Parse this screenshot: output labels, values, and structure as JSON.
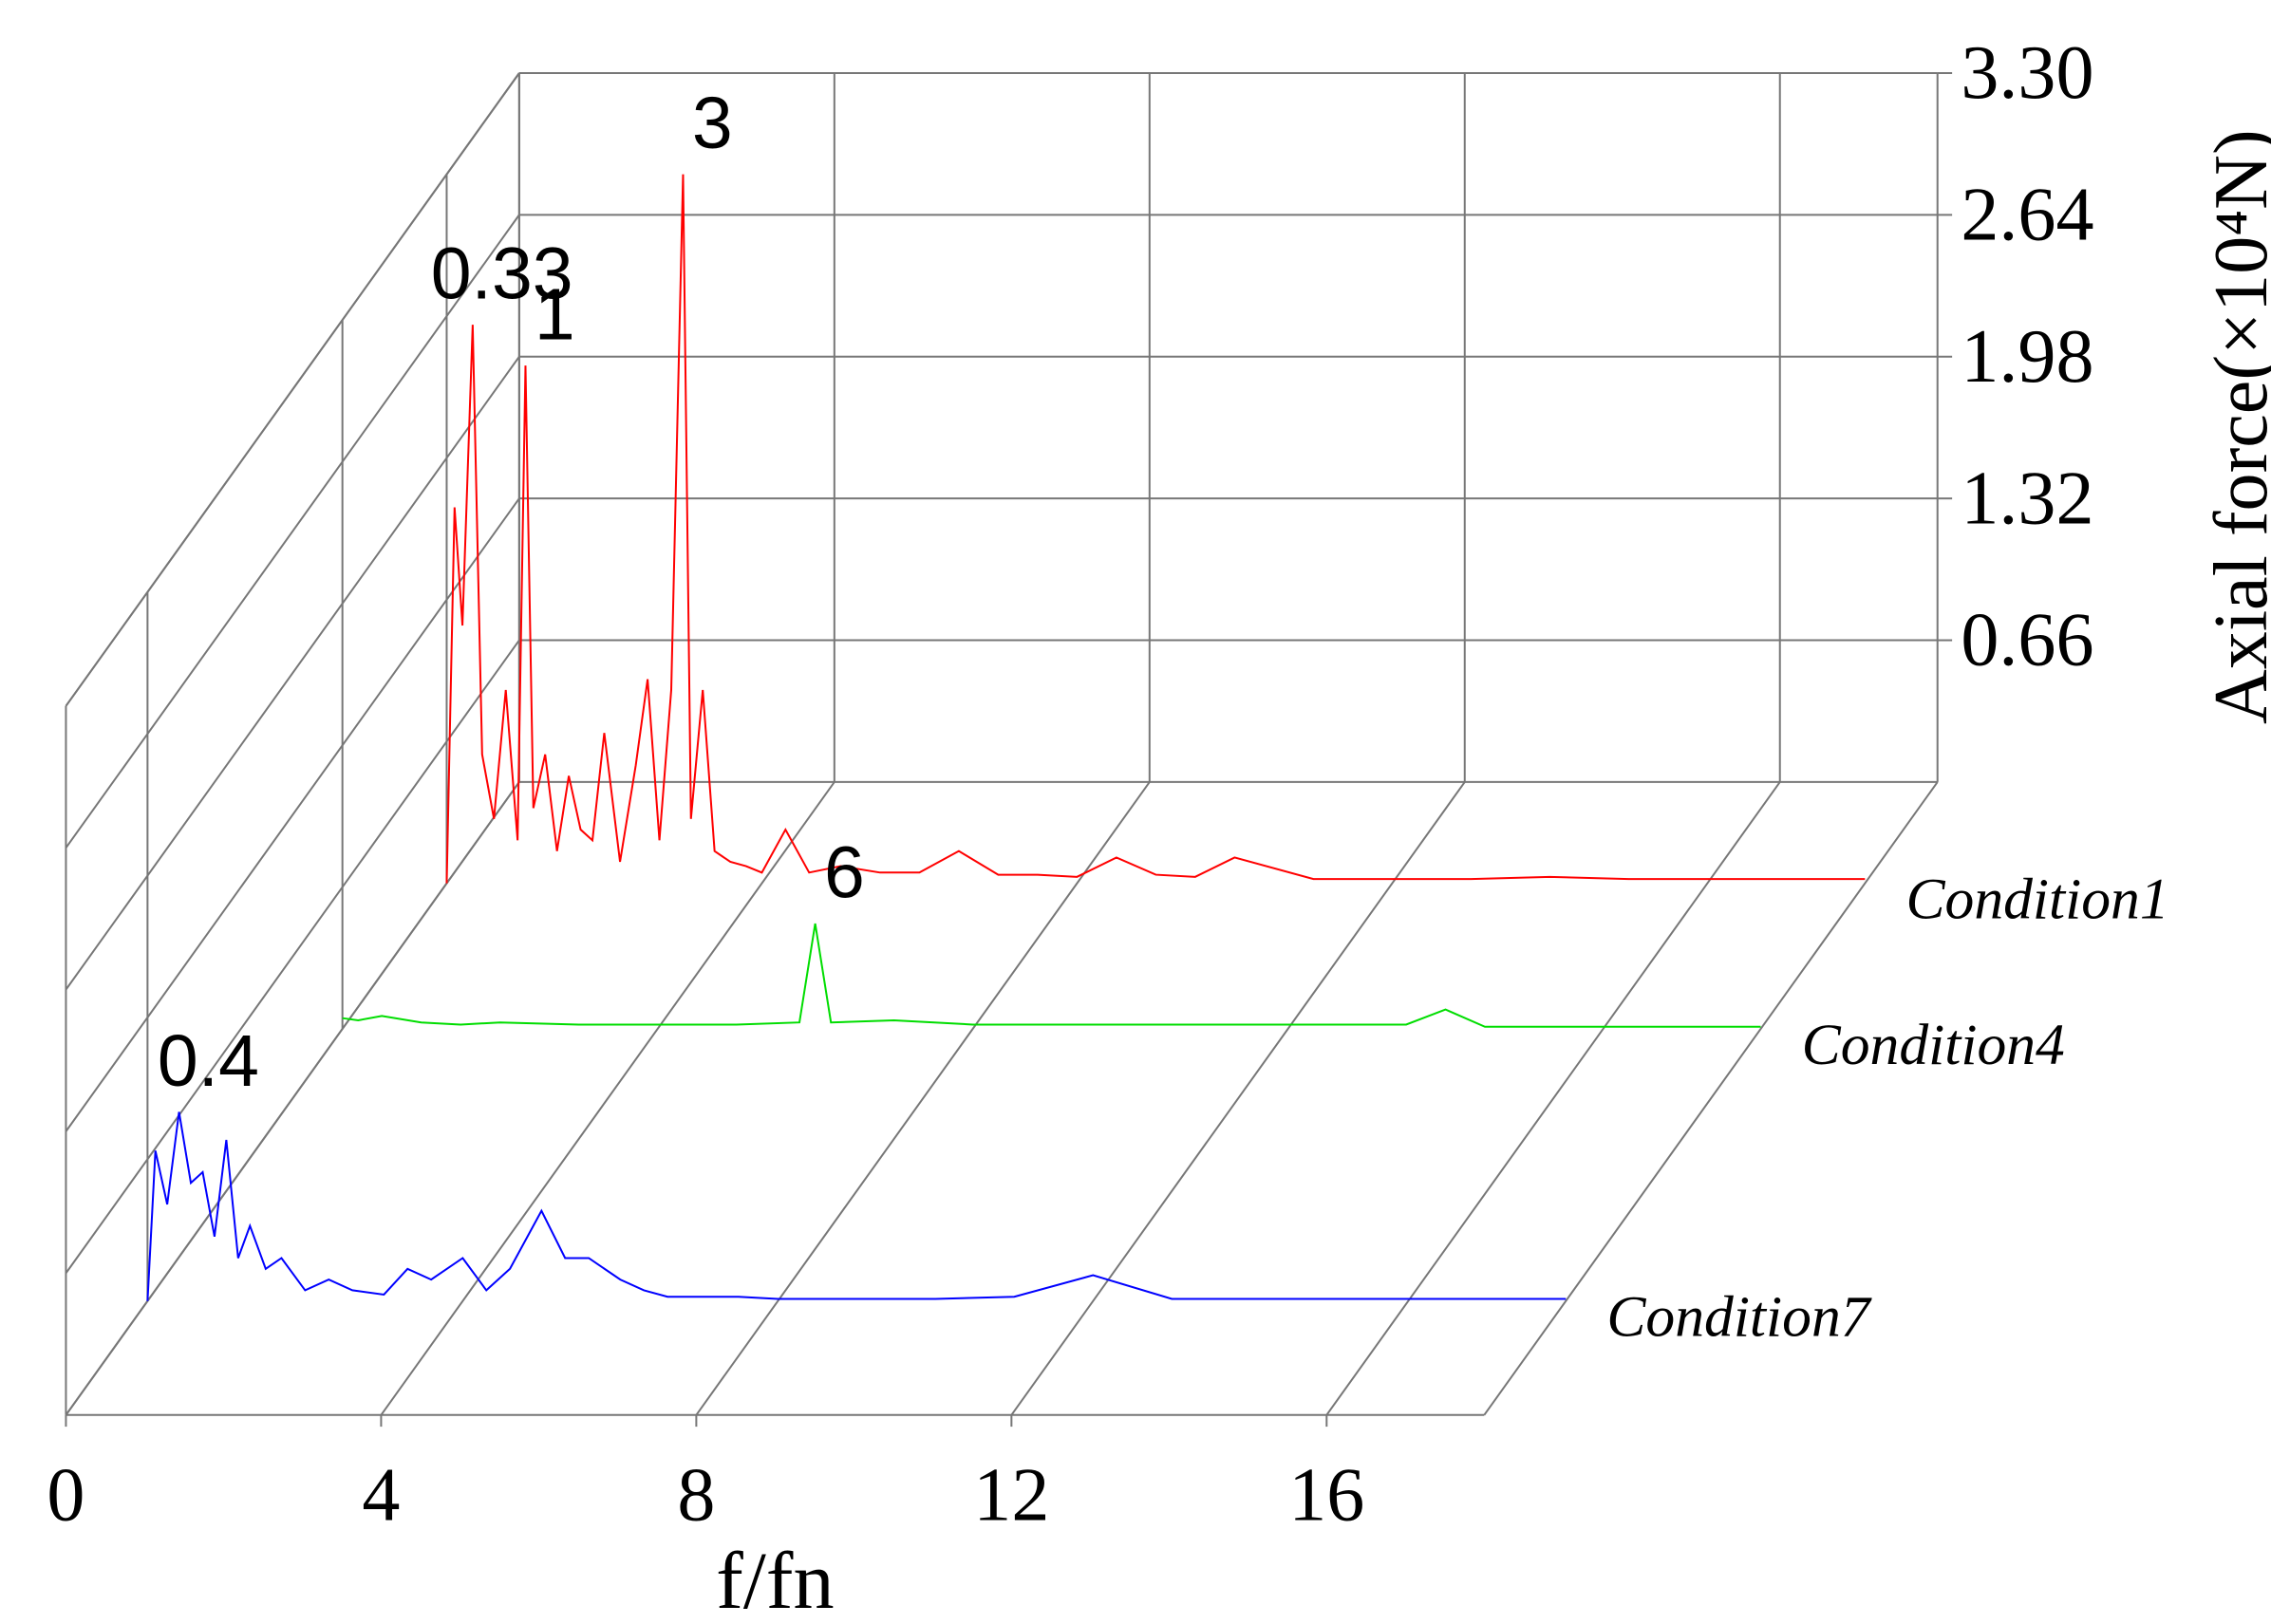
{
  "chart_data": {
    "type": "waterfall",
    "x_label": "f/fn",
    "y_label": "Axial force(×10⁴N)",
    "xlim": [
      0,
      18
    ],
    "xticks": [
      0,
      4,
      8,
      12,
      16
    ],
    "ylim": [
      0,
      3.3
    ],
    "yticks": [
      {
        "value": 0.66,
        "label": "0.66"
      },
      {
        "value": 1.32,
        "label": "1.32"
      },
      {
        "value": 1.98,
        "label": "1.98"
      },
      {
        "value": 2.64,
        "label": "2.64"
      },
      {
        "value": 3.3,
        "label": "3.30"
      }
    ],
    "grid": true,
    "series": [
      {
        "name": "Condition1",
        "color": "#ff0000",
        "x": [
          0,
          0.1,
          0.2,
          0.33,
          0.45,
          0.6,
          0.75,
          0.9,
          1,
          1.1,
          1.25,
          1.4,
          1.55,
          1.7,
          1.85,
          2,
          2.2,
          2.4,
          2.55,
          2.7,
          2.85,
          3,
          3.1,
          3.25,
          3.4,
          3.6,
          3.8,
          4,
          4.3,
          4.6,
          5,
          5.5,
          6,
          6.5,
          7,
          7.5,
          8,
          8.5,
          9,
          9.5,
          10,
          11,
          12,
          13,
          14,
          15,
          16,
          17,
          18
        ],
        "values": [
          0,
          1.75,
          1.2,
          2.6,
          0.6,
          0.3,
          0.9,
          0.2,
          2.41,
          0.35,
          0.6,
          0.15,
          0.5,
          0.25,
          0.2,
          0.7,
          0.1,
          0.55,
          0.95,
          0.2,
          0.9,
          3.3,
          0.3,
          0.9,
          0.15,
          0.1,
          0.08,
          0.05,
          0.25,
          0.05,
          0.08,
          0.05,
          0.05,
          0.15,
          0.04,
          0.04,
          0.03,
          0.12,
          0.04,
          0.03,
          0.12,
          0.02,
          0.02,
          0.02,
          0.03,
          0.02,
          0.02,
          0.02,
          0.02
        ],
        "peak_labels": [
          {
            "value": 0.33,
            "label": "0.33"
          },
          {
            "value": 1,
            "label": "1"
          },
          {
            "value": 3,
            "label": "3"
          }
        ]
      },
      {
        "name": "Condition4",
        "color": "#00dd00",
        "x": [
          0,
          0.2,
          0.5,
          1,
          1.5,
          2,
          3,
          4,
          5,
          5.8,
          6,
          6.2,
          7,
          8,
          10,
          12,
          13.5,
          14,
          14.5,
          16,
          18
        ],
        "values": [
          0.05,
          0.04,
          0.06,
          0.03,
          0.02,
          0.03,
          0.02,
          0.02,
          0.02,
          0.03,
          0.49,
          0.03,
          0.04,
          0.02,
          0.02,
          0.02,
          0.02,
          0.09,
          0.01,
          0.01,
          0.01
        ],
        "peak_labels": [
          {
            "value": 6,
            "label": "6"
          }
        ]
      },
      {
        "name": "Condition7",
        "color": "#0000ff",
        "x": [
          0,
          0.1,
          0.25,
          0.4,
          0.55,
          0.7,
          0.85,
          1,
          1.15,
          1.3,
          1.5,
          1.7,
          2,
          2.3,
          2.6,
          3,
          3.3,
          3.6,
          4,
          4.3,
          4.6,
          5,
          5.3,
          5.6,
          6,
          6.3,
          6.6,
          7,
          7.5,
          8,
          9,
          10,
          11,
          12,
          13,
          14,
          15,
          16,
          17,
          18
        ],
        "values": [
          0,
          0.7,
          0.45,
          0.88,
          0.55,
          0.6,
          0.3,
          0.75,
          0.2,
          0.35,
          0.15,
          0.2,
          0.05,
          0.1,
          0.05,
          0.03,
          0.15,
          0.1,
          0.2,
          0.05,
          0.15,
          0.42,
          0.2,
          0.2,
          0.1,
          0.05,
          0.02,
          0.02,
          0.02,
          0.01,
          0.01,
          0.01,
          0.02,
          0.12,
          0.01,
          0.01,
          0.01,
          0.01,
          0.01,
          0.01
        ],
        "peak_labels": [
          {
            "value": 0.4,
            "label": "0.4"
          }
        ]
      }
    ]
  }
}
